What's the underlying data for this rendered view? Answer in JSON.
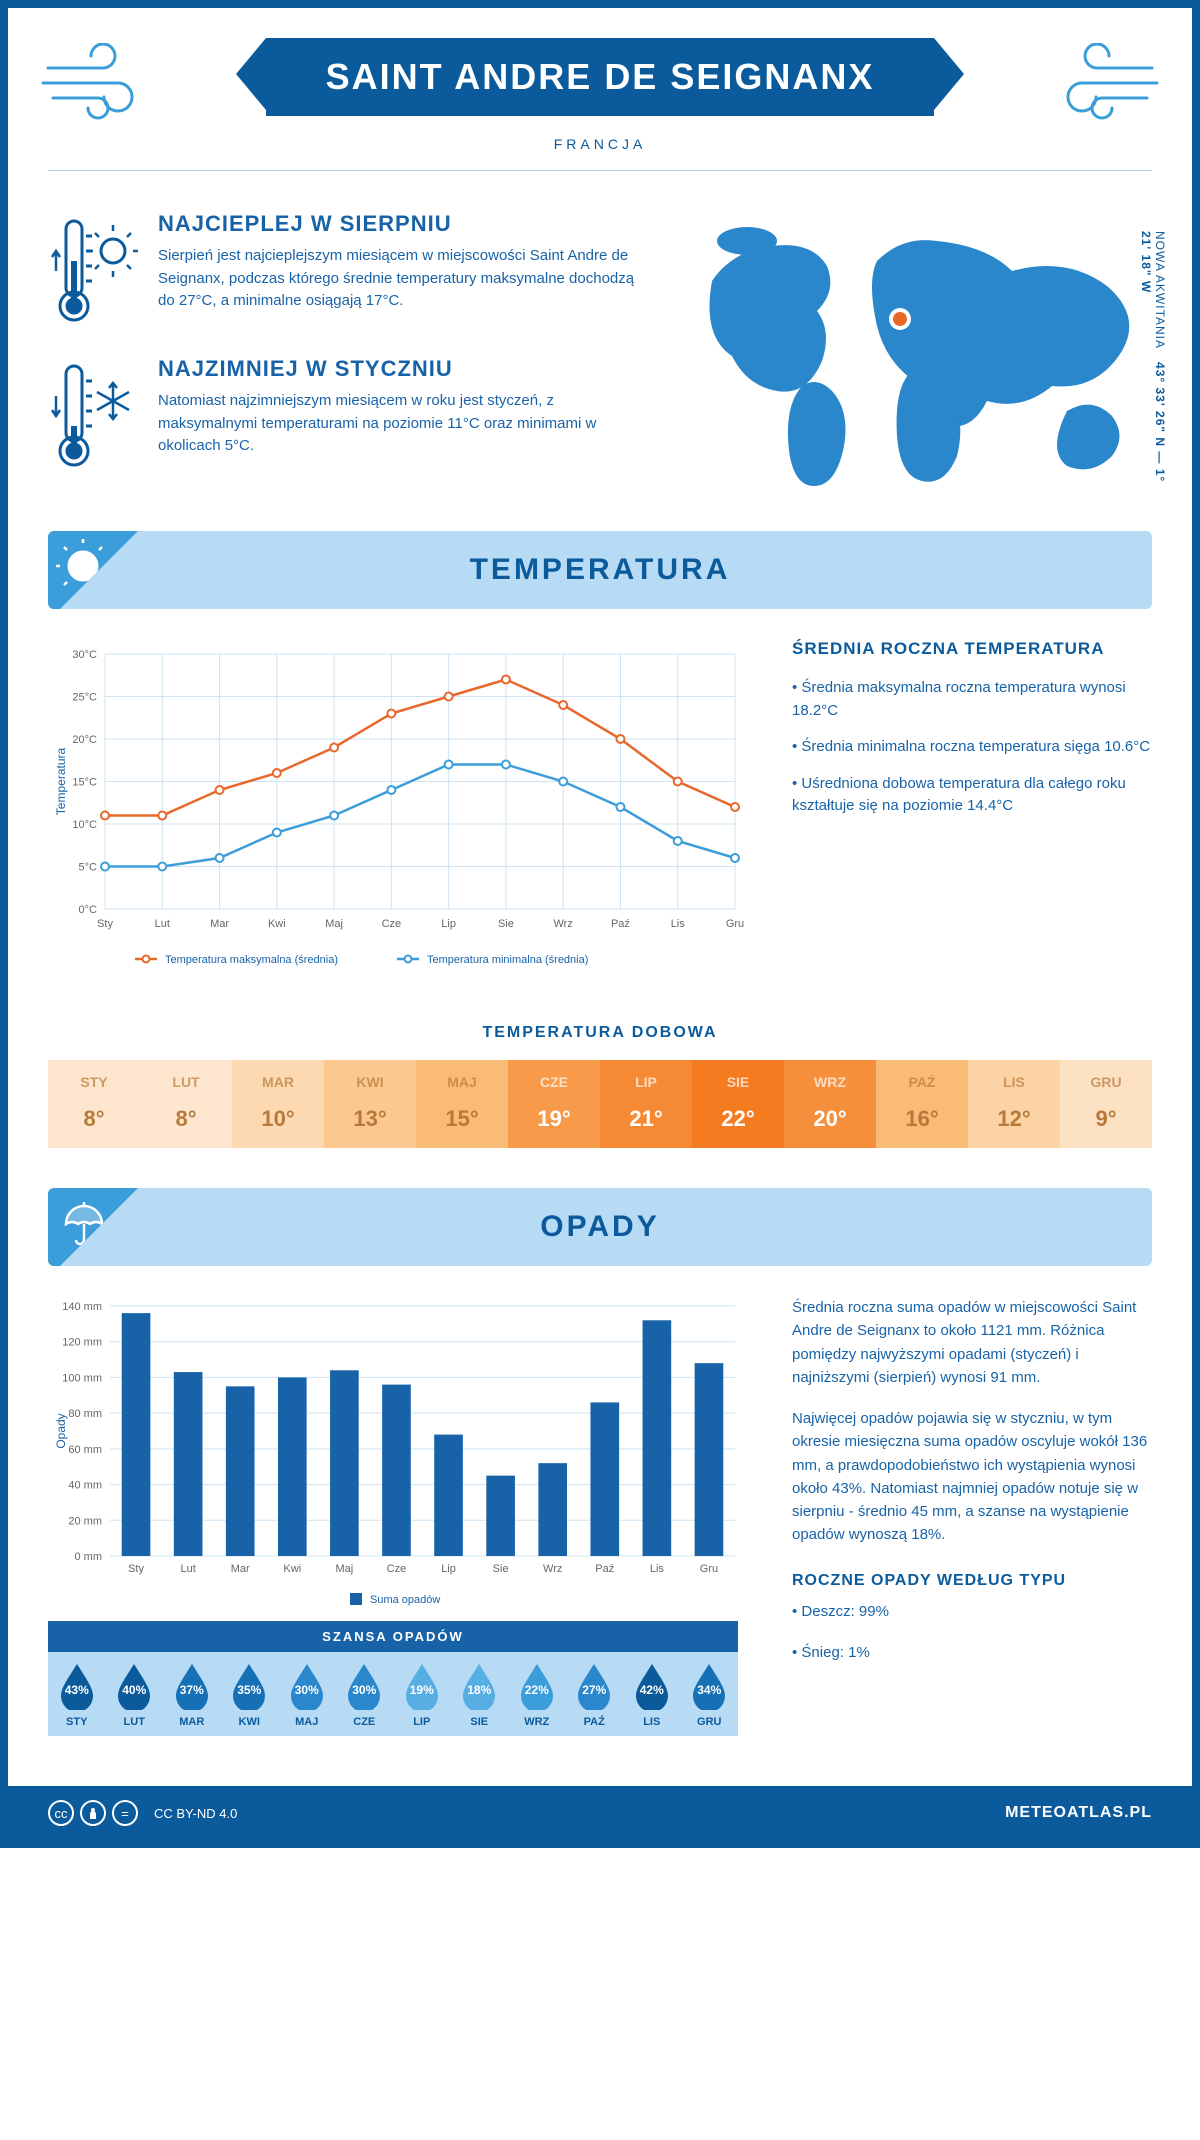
{
  "header": {
    "title": "SAINT ANDRE DE SEIGNANX",
    "subtitle": "FRANCJA"
  },
  "intro": {
    "hot": {
      "title": "NAJCIEPLEJ W SIERPNIU",
      "text": "Sierpień jest najcieplejszym miesiącem w miejscowości Saint Andre de Seignanx, podczas którego średnie temperatury maksymalne dochodzą do 27°C, a minimalne osiągają 17°C."
    },
    "cold": {
      "title": "NAJZIMNIEJ W STYCZNIU",
      "text": "Natomiast najzimniejszym miesiącem w roku jest styczeń, z maksymalnymi temperaturami na poziomie 11°C oraz minimami w okolicach 5°C."
    },
    "coords": "43° 33' 26\" N — 1° 21' 18\" W",
    "region": "NOWA AKWITANIA"
  },
  "months_short": [
    "Sty",
    "Lut",
    "Mar",
    "Kwi",
    "Maj",
    "Cze",
    "Lip",
    "Sie",
    "Wrz",
    "Paź",
    "Lis",
    "Gru"
  ],
  "months_upper": [
    "STY",
    "LUT",
    "MAR",
    "KWI",
    "MAJ",
    "CZE",
    "LIP",
    "SIE",
    "WRZ",
    "PAŹ",
    "LIS",
    "GRU"
  ],
  "temperature": {
    "section_title": "TEMPERATURA",
    "chart": {
      "type": "line",
      "ylabel": "Temperatura",
      "ylim": [
        0,
        30
      ],
      "ytick_step": 5,
      "ytick_labels": [
        "0°C",
        "5°C",
        "10°C",
        "15°C",
        "20°C",
        "25°C",
        "30°C"
      ],
      "grid_color": "#cfe3f2",
      "series": [
        {
          "name": "Temperatura maksymalna (średnia)",
          "color": "#e8682c",
          "values": [
            11,
            11,
            14,
            16,
            19,
            23,
            25,
            27,
            24,
            20,
            15,
            12
          ]
        },
        {
          "name": "Temperatura minimalna (średnia)",
          "color": "#3b9dd9",
          "values": [
            5,
            5,
            6,
            9,
            11,
            14,
            17,
            17,
            15,
            12,
            8,
            6
          ]
        }
      ]
    },
    "info": {
      "title": "ŚREDNIA ROCZNA TEMPERATURA",
      "bullets": [
        "Średnia maksymalna roczna temperatura wynosi 18.2°C",
        "Średnia minimalna roczna temperatura sięga 10.6°C",
        "Uśredniona dobowa temperatura dla całego roku kształtuje się na poziomie 14.4°C"
      ]
    },
    "daily": {
      "title": "TEMPERATURA DOBOWA",
      "values": [
        8,
        8,
        10,
        13,
        15,
        19,
        21,
        22,
        20,
        16,
        12,
        9
      ],
      "colors": [
        "#fde6cd",
        "#fde6cd",
        "#fcd9b0",
        "#fbc88f",
        "#fabb76",
        "#f79b4a",
        "#f68933",
        "#f57b20",
        "#f68f3b",
        "#fabb76",
        "#fcd3a4",
        "#fde1c3"
      ],
      "text_colors": [
        "#b87a3a",
        "#b87a3a",
        "#b87a3a",
        "#b87a3a",
        "#b87a3a",
        "#ffffff",
        "#ffffff",
        "#ffffff",
        "#ffffff",
        "#b87a3a",
        "#b87a3a",
        "#b87a3a"
      ]
    }
  },
  "precip": {
    "section_title": "OPADY",
    "chart": {
      "type": "bar",
      "ylabel": "Opady",
      "ylim": [
        0,
        140
      ],
      "ytick_step": 20,
      "ytick_labels": [
        "0 mm",
        "20 mm",
        "40 mm",
        "60 mm",
        "80 mm",
        "100 mm",
        "120 mm",
        "140 mm"
      ],
      "grid_color": "#cfe3f2",
      "bar_color": "#1863a8",
      "legend": "Suma opadów",
      "values": [
        136,
        103,
        95,
        100,
        104,
        96,
        68,
        45,
        52,
        86,
        132,
        108
      ]
    },
    "info": {
      "p1": "Średnia roczna suma opadów w miejscowości Saint Andre de Seignanx to około 1121 mm. Różnica pomiędzy najwyższymi opadami (styczeń) i najniższymi (sierpień) wynosi 91 mm.",
      "p2": "Najwięcej opadów pojawia się w styczniu, w tym okresie miesięczna suma opadów oscyluje wokół 136 mm, a prawdopodobieństwo ich wystąpienia wynosi około 43%. Natomiast najmniej opadów notuje się w sierpniu - średnio 45 mm, a szanse na wystąpienie opadów wynoszą 18%.",
      "type_title": "ROCZNE OPADY WEDŁUG TYPU",
      "types": [
        "Deszcz: 99%",
        "Śnieg: 1%"
      ]
    },
    "chance": {
      "title": "SZANSA OPADÓW",
      "values": [
        43,
        40,
        37,
        35,
        30,
        30,
        19,
        18,
        22,
        27,
        42,
        34
      ],
      "colors": [
        "#0a5a9c",
        "#0a5a9c",
        "#1670b5",
        "#1670b5",
        "#2a87cc",
        "#2a87cc",
        "#56aee3",
        "#56aee3",
        "#3b9dd9",
        "#2a87cc",
        "#0a5a9c",
        "#1670b5"
      ]
    }
  },
  "footer": {
    "license": "CC BY-ND 4.0",
    "brand": "METEOATLAS.PL"
  },
  "palette": {
    "primary": "#0a5a9c",
    "secondary": "#1863a8",
    "light": "#b7daf5",
    "accent": "#3b9dd9",
    "orange": "#e8682c"
  }
}
